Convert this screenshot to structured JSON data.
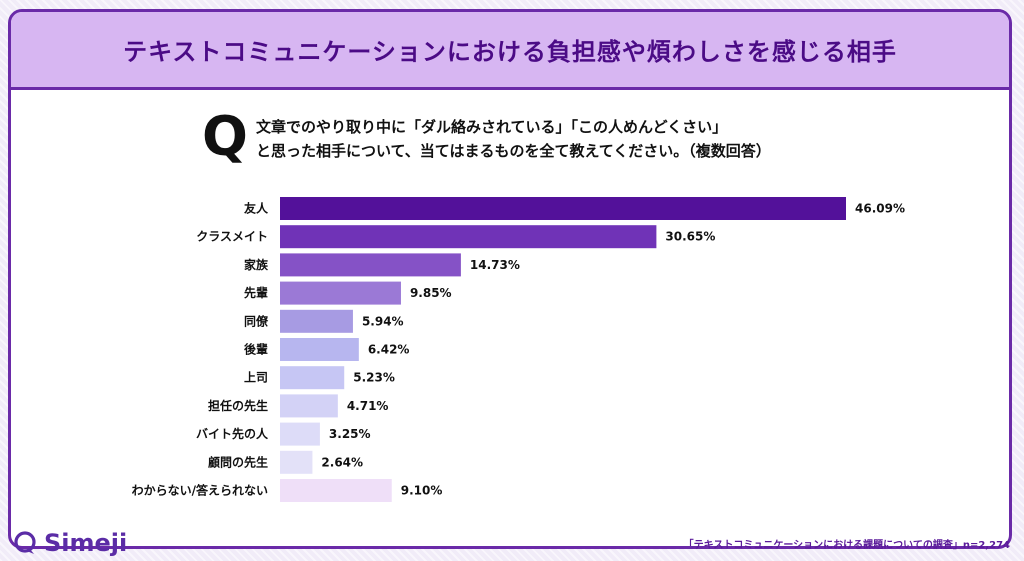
{
  "title": "テキストコミュニケーションにおける負担感や煩わしさを感じる相手",
  "question": {
    "mark": "Q",
    "line1": "文章でのやり取り中に「ダル絡みされている」「この人めんどくさい」",
    "line2": "と思った相手について、当てはまるものを全て教えてください。（複数回答）"
  },
  "brand": {
    "name": "Simeji",
    "color": "#5b2ca6"
  },
  "footer": "「テキストコミュニケーションにおける課題についての調査」n=2,274",
  "chart_data": {
    "type": "bar",
    "orientation": "horizontal",
    "categories": [
      "友人",
      "クラスメイト",
      "家族",
      "先輩",
      "同僚",
      "後輩",
      "上司",
      "担任の先生",
      "バイト先の人",
      "顧問の先生",
      "わからない/答えられない"
    ],
    "values": [
      46.09,
      30.65,
      14.73,
      9.85,
      5.94,
      6.42,
      5.23,
      4.71,
      3.25,
      2.64,
      9.1
    ],
    "labels": [
      "46.09%",
      "30.65%",
      "14.73%",
      "9.85%",
      "5.94%",
      "6.42%",
      "5.23%",
      "4.71%",
      "3.25%",
      "2.64%",
      "9.10%"
    ],
    "colors": [
      "#53119a",
      "#7033b7",
      "#8552c6",
      "#9b79d6",
      "#a79be3",
      "#b7b6ef",
      "#c6c6f4",
      "#d3d2f6",
      "#dddcf8",
      "#e3e1f8",
      "#efdff8"
    ],
    "unit": "%",
    "xlim": [
      0,
      50
    ],
    "grid": false,
    "legend": "none"
  }
}
